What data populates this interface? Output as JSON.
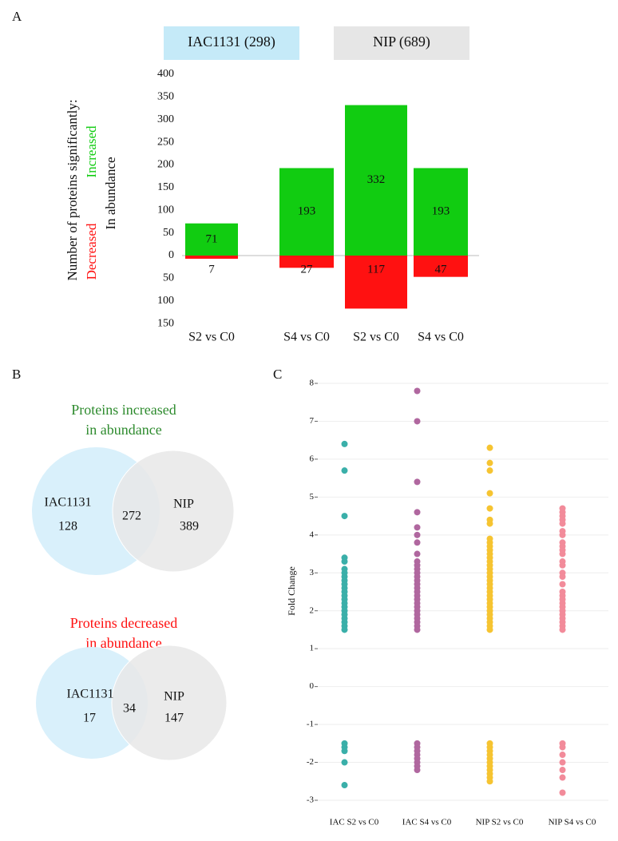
{
  "chart_data": [
    {
      "panel": "A",
      "type": "bar",
      "groups": [
        {
          "label": "IAC1131 (298)",
          "color": "#c5eaf8"
        },
        {
          "label": "NIP (689)",
          "color": "#e6e6e6"
        }
      ],
      "ylabel": "Number of proteins significantly:",
      "ylabel_sub": "In abundance",
      "categories": [
        "S2 vs C0",
        "S4 vs C0",
        "S2 vs C0",
        "S4 vs C0"
      ],
      "series": [
        {
          "name": "Increased",
          "color": "#11cc11",
          "direction": "up",
          "values": [
            71,
            193,
            332,
            193
          ]
        },
        {
          "name": "Decreased",
          "color": "#ff1111",
          "direction": "down",
          "values": [
            7,
            27,
            117,
            47
          ]
        }
      ],
      "ylim": [
        -150,
        400
      ],
      "yticks": [
        400,
        350,
        300,
        250,
        200,
        150,
        100,
        50,
        0,
        {
          "value": -50,
          "label": "50"
        },
        {
          "value": -100,
          "label": "100"
        },
        {
          "value": -150,
          "label": "150"
        }
      ]
    },
    {
      "panel": "B",
      "type": "venn",
      "title": [
        "Proteins increased",
        "in abundance"
      ],
      "title_color": "#2e8b2e",
      "sets": [
        {
          "label": "IAC1131",
          "value": 128,
          "color": "#d9f0fb"
        },
        {
          "label": "NIP",
          "value": 389,
          "color": "#e8e8e8"
        }
      ],
      "overlap": 272
    },
    {
      "type": "venn",
      "title": [
        "Proteins decreased",
        "in abundance"
      ],
      "title_color": "#ff1111",
      "sets": [
        {
          "label": "IAC1131",
          "value": 17,
          "color": "#d9f0fb"
        },
        {
          "label": "NIP",
          "value": 147,
          "color": "#e8e8e8"
        }
      ],
      "overlap": 34
    },
    {
      "panel": "C",
      "type": "strip",
      "ylabel": "Fold Change",
      "categories": [
        "IAC S2 vs C0",
        "IAC S4 vs C0",
        "NIP S2 vs C0",
        "NIP S4 vs C0"
      ],
      "groups": [
        {
          "color": "#3aafa9",
          "values": [
            6.4,
            5.7,
            4.5,
            3.4,
            3.3,
            3.1,
            3.0,
            2.9,
            2.8,
            2.7,
            2.6,
            2.5,
            2.4,
            2.3,
            2.2,
            2.1,
            2.0,
            1.9,
            1.8,
            1.7,
            1.6,
            1.5,
            -1.5,
            -1.6,
            -1.7,
            -2.0,
            -2.6
          ]
        },
        {
          "color": "#b0679f",
          "values": [
            7.8,
            7.0,
            5.4,
            4.6,
            4.2,
            4.0,
            3.8,
            3.5,
            3.3,
            3.2,
            3.1,
            3.0,
            2.9,
            2.8,
            2.7,
            2.6,
            2.5,
            2.4,
            2.3,
            2.2,
            2.1,
            2.0,
            1.9,
            1.8,
            1.7,
            1.6,
            1.5,
            -1.5,
            -1.6,
            -1.7,
            -1.8,
            -1.9,
            -2.0,
            -2.1,
            -2.2
          ]
        },
        {
          "color": "#f6c431",
          "values": [
            6.3,
            5.9,
            5.7,
            5.1,
            4.7,
            4.4,
            4.3,
            3.9,
            3.8,
            3.7,
            3.6,
            3.5,
            3.4,
            3.3,
            3.2,
            3.1,
            3.0,
            2.9,
            2.8,
            2.7,
            2.6,
            2.5,
            2.4,
            2.3,
            2.2,
            2.1,
            2.0,
            1.9,
            1.8,
            1.7,
            1.6,
            1.5,
            -1.5,
            -1.6,
            -1.7,
            -1.8,
            -1.9,
            -2.0,
            -2.1,
            -2.2,
            -2.3,
            -2.4,
            -2.5
          ]
        },
        {
          "color": "#f28b9a",
          "values": [
            4.7,
            4.6,
            4.5,
            4.4,
            4.3,
            4.1,
            4.0,
            3.8,
            3.7,
            3.6,
            3.5,
            3.3,
            3.2,
            3.0,
            2.9,
            2.7,
            2.5,
            2.4,
            2.3,
            2.2,
            2.1,
            2.0,
            1.9,
            1.8,
            1.7,
            1.6,
            1.5,
            -1.5,
            -1.6,
            -1.8,
            -2.0,
            -2.2,
            -2.4,
            -2.8
          ]
        }
      ],
      "ylim": [
        -3,
        8
      ],
      "yticks": [
        8,
        7,
        6,
        5,
        4,
        3,
        2,
        1,
        0,
        -1,
        -2,
        -3
      ],
      "grid": true
    }
  ]
}
